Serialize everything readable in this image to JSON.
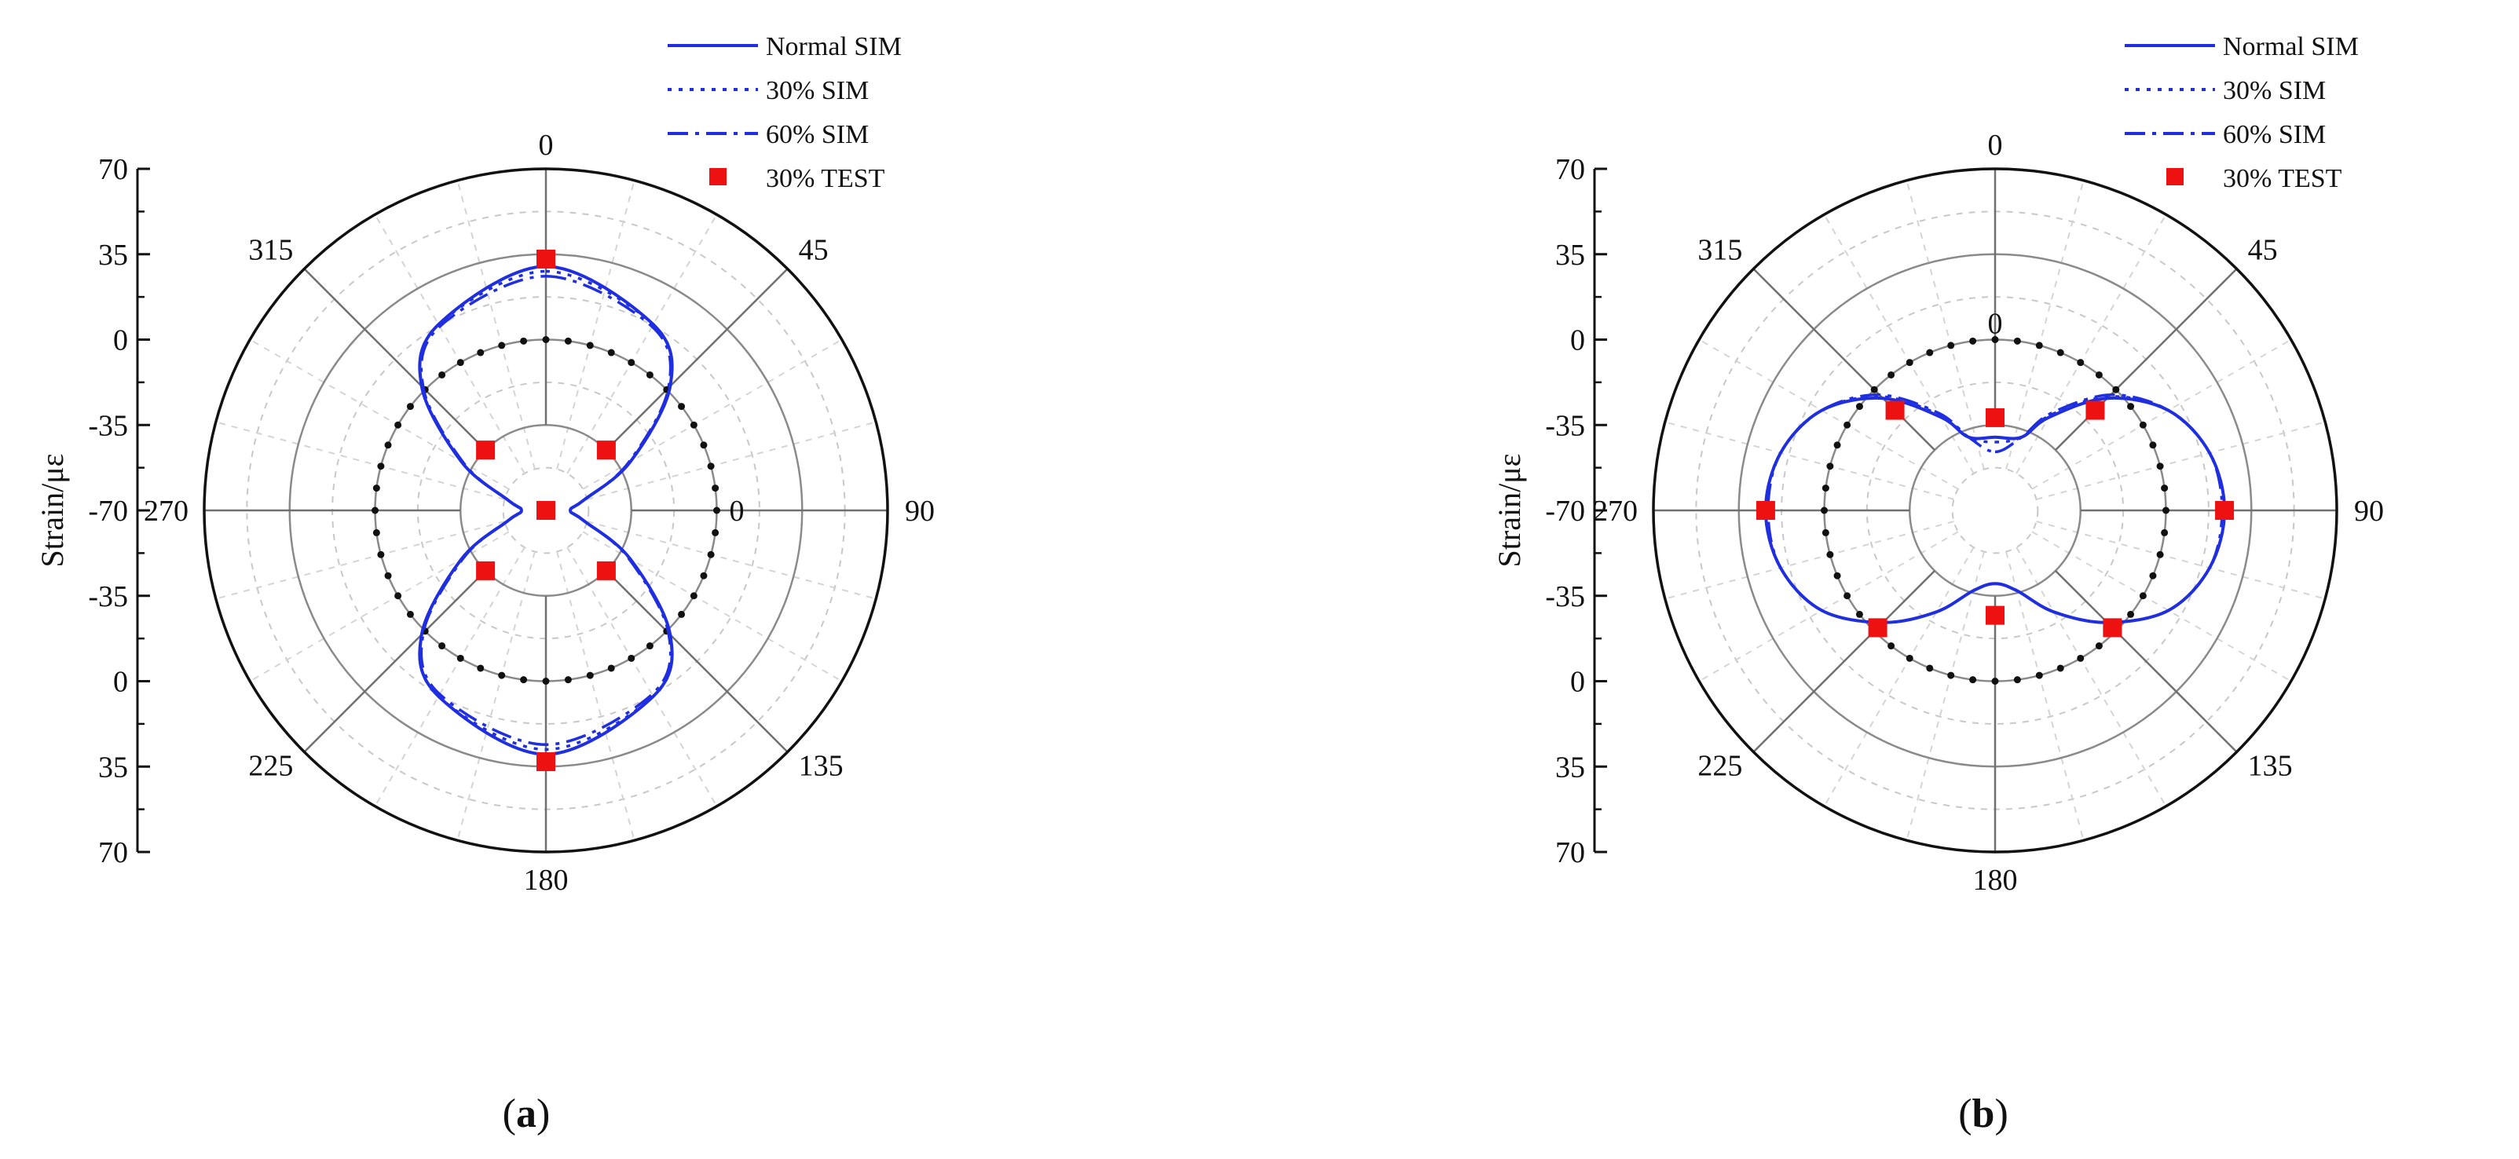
{
  "figure": {
    "panel_labels": [
      {
        "open": "(",
        "letter": "a",
        "close": ")"
      },
      {
        "open": "(",
        "letter": "b",
        "close": ")"
      }
    ]
  },
  "chart_data": [
    {
      "type": "polar-line",
      "panel": "a",
      "ylabel": "Strain/με",
      "radial_ticks_upper": [
        "70",
        "35",
        "0",
        "-35",
        "-70"
      ],
      "radial_ticks_lower": [
        "-35",
        "0",
        "35",
        "70"
      ],
      "radial_range": [
        -70,
        70
      ],
      "angle_tick_labels": [
        "0",
        "45",
        "90",
        "135",
        "180",
        "225",
        "270",
        "315"
      ],
      "zero_circle_label": "0",
      "zero_circle_label_angle": 90,
      "angle_unit": "degrees",
      "grid": true,
      "legend_position": "top-right",
      "legend": [
        {
          "name": "Normal SIM",
          "style": "solid",
          "color": "#1f2fe0"
        },
        {
          "name": "30% SIM",
          "style": "dotted",
          "color": "#1f2fe0"
        },
        {
          "name": "60% SIM",
          "style": "dash-dot",
          "color": "#1f2fe0"
        },
        {
          "name": "30% TEST",
          "style": "square-marker",
          "color": "#ee1111"
        }
      ],
      "zero_reference": {
        "style": "black dots",
        "color": "#111111",
        "value": 0
      },
      "series": [
        {
          "name": "Normal SIM",
          "theta": [
            0,
            30,
            45,
            60,
            75,
            90,
            105,
            120,
            135,
            150,
            180,
            210,
            225,
            240,
            255,
            270,
            285,
            300,
            315,
            330
          ],
          "r": [
            30,
            18,
            2,
            -30,
            -54,
            -60,
            -54,
            -30,
            2,
            18,
            30,
            18,
            2,
            -30,
            -54,
            -60,
            -54,
            -30,
            2,
            18
          ]
        },
        {
          "name": "30% SIM",
          "theta": [
            0,
            30,
            45,
            60,
            75,
            90,
            105,
            120,
            135,
            150,
            180,
            210,
            225,
            240,
            255,
            270,
            285,
            300,
            315,
            330
          ],
          "r": [
            28,
            18,
            2,
            -30,
            -54,
            -60,
            -54,
            -30,
            2,
            18,
            28,
            18,
            2,
            -30,
            -54,
            -60,
            -54,
            -30,
            2,
            18
          ]
        },
        {
          "name": "60% SIM",
          "theta": [
            0,
            30,
            45,
            60,
            75,
            90,
            105,
            120,
            135,
            150,
            180,
            210,
            225,
            240,
            255,
            270,
            285,
            300,
            315,
            330
          ],
          "r": [
            26,
            17,
            1,
            -31,
            -54,
            -60,
            -54,
            -31,
            1,
            17,
            26,
            17,
            1,
            -31,
            -54,
            -60,
            -54,
            -31,
            1,
            17
          ]
        },
        {
          "name": "30% TEST",
          "theta": [
            0,
            45,
            90,
            135,
            180,
            225,
            270,
            315
          ],
          "r": [
            33,
            -35,
            -70,
            -35,
            33,
            -35,
            -70,
            -35
          ]
        }
      ]
    },
    {
      "type": "polar-line",
      "panel": "b",
      "ylabel": "Strain/με",
      "radial_ticks_upper": [
        "70",
        "35",
        "0",
        "-35",
        "-70"
      ],
      "radial_ticks_lower": [
        "-35",
        "0",
        "35",
        "70"
      ],
      "radial_range": [
        -70,
        70
      ],
      "angle_tick_labels": [
        "0",
        "45",
        "90",
        "135",
        "180",
        "225",
        "270",
        "315"
      ],
      "zero_circle_label": "0",
      "zero_circle_label_angle": 0,
      "angle_unit": "degrees",
      "grid": true,
      "legend_position": "top-right",
      "legend": [
        {
          "name": "Normal SIM",
          "style": "solid",
          "color": "#1f2fe0"
        },
        {
          "name": "30% SIM",
          "style": "dotted",
          "color": "#1f2fe0"
        },
        {
          "name": "60% SIM",
          "style": "dash-dot",
          "color": "#1f2fe0"
        },
        {
          "name": "30% TEST",
          "style": "square-marker",
          "color": "#ee1111"
        }
      ],
      "zero_reference": {
        "style": "black dots",
        "color": "#111111",
        "value": 0
      },
      "series": [
        {
          "name": "Normal SIM",
          "theta": [
            0,
            20,
            30,
            45,
            60,
            75,
            90,
            105,
            120,
            135,
            150,
            165,
            180,
            195,
            210,
            225,
            240,
            255,
            270,
            285,
            300,
            315,
            330,
            340
          ],
          "r": [
            -40,
            -38,
            -26,
            -5,
            12,
            21,
            24,
            21,
            12,
            -5,
            -22,
            -36,
            -40,
            -36,
            -22,
            -5,
            12,
            21,
            24,
            21,
            12,
            -5,
            -26,
            -38
          ]
        },
        {
          "name": "30% SIM",
          "theta": [
            0,
            20,
            30,
            45,
            60,
            75,
            90,
            105,
            120,
            135,
            150,
            165,
            180,
            195,
            210,
            225,
            240,
            255,
            270,
            285,
            300,
            315,
            330,
            340
          ],
          "r": [
            -42,
            -38,
            -25,
            -4,
            12,
            21,
            24,
            21,
            12,
            -5,
            -22,
            -36,
            -40,
            -36,
            -22,
            -5,
            12,
            21,
            24,
            21,
            12,
            -4,
            -25,
            -38
          ]
        },
        {
          "name": "60% SIM",
          "theta": [
            0,
            20,
            30,
            45,
            60,
            75,
            90,
            105,
            120,
            135,
            150,
            165,
            180,
            195,
            210,
            225,
            240,
            255,
            270,
            285,
            300,
            315,
            330,
            340
          ],
          "r": [
            -46,
            -38,
            -24,
            -3,
            12,
            21,
            23,
            21,
            12,
            -5,
            -22,
            -36,
            -40,
            -36,
            -22,
            -5,
            12,
            21,
            23,
            21,
            12,
            -3,
            -24,
            -38
          ]
        },
        {
          "name": "30% TEST",
          "theta": [
            0,
            45,
            90,
            135,
            180,
            225,
            270,
            315
          ],
          "r": [
            -32,
            -12,
            24,
            -2,
            -27,
            -2,
            24,
            -12
          ]
        }
      ]
    }
  ]
}
